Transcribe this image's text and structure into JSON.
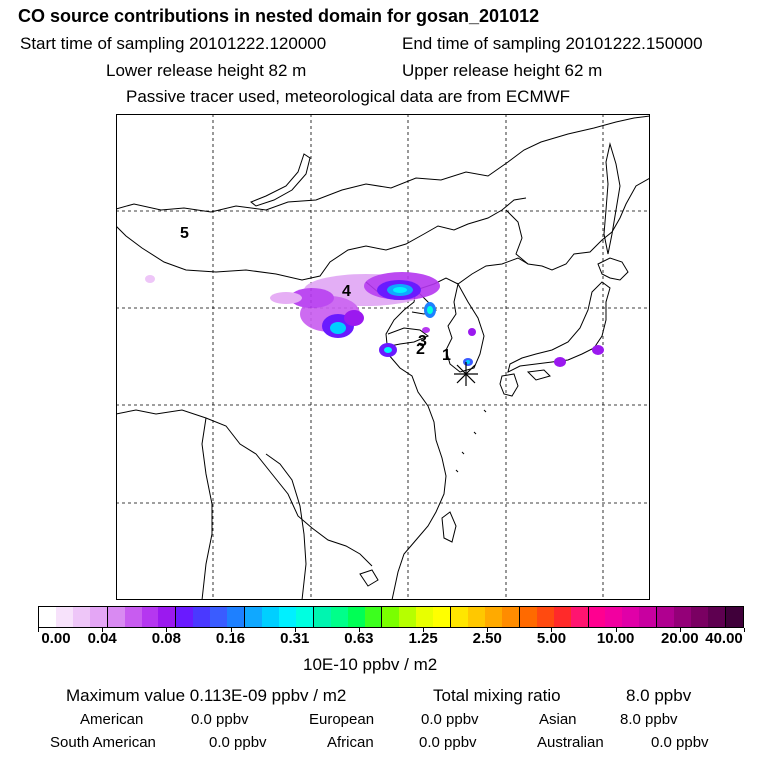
{
  "header": {
    "title": "CO  source contributions in nested domain for gosan_201012",
    "start": "Start time of sampling 20101222.120000",
    "end": "End time of sampling 20101222.150000",
    "lower": "Lower release height   82 m",
    "upper": "Upper release height   62 m",
    "passive": "Passive tracer used, meteorological data are from ECMWF"
  },
  "map": {
    "labels": [
      "5",
      "4",
      "3",
      "2",
      "1"
    ],
    "receptor_glyph": "✳"
  },
  "colorbar": {
    "ticks": [
      "0.00",
      "0.04",
      "0.08",
      "0.16",
      "0.31",
      "0.63",
      "1.25",
      "2.50",
      "5.00",
      "10.00",
      "20.00",
      "40.00"
    ],
    "units": "10E-10 ppbv / m2",
    "colors": [
      "#ffffff",
      "#f7e2fb",
      "#eec6f8",
      "#e4a6f5",
      "#d98af2",
      "#c85cf0",
      "#b537f0",
      "#9b19ef",
      "#6a1aff",
      "#4a39ff",
      "#3a5cff",
      "#1e80ff",
      "#10a8ff",
      "#00cfff",
      "#00f0ff",
      "#00ffe0",
      "#00f5b0",
      "#00ff8a",
      "#00ff55",
      "#3cff1e",
      "#7aff00",
      "#b6ff00",
      "#e8ff00",
      "#ffff00",
      "#ffe600",
      "#ffc800",
      "#ffaa00",
      "#ff8c00",
      "#ff6a00",
      "#ff4a10",
      "#ff2a2a",
      "#ff1470",
      "#ff0090",
      "#f200a0",
      "#e000a8",
      "#c800a0",
      "#b00090",
      "#940078",
      "#7a0062",
      "#5e0050",
      "#40003a"
    ]
  },
  "stats": {
    "max": "Maximum value  0.113E-09 ppbv / m2",
    "total_label": "Total mixing ratio",
    "total_value": "8.0 ppbv",
    "american_label": "American",
    "american_value": "0.0 ppbv",
    "european_label": "European",
    "european_value": "0.0 ppbv",
    "asian_label": "Asian",
    "asian_value": "8.0 ppbv",
    "south_american_label": "South American",
    "south_american_value": "0.0 ppbv",
    "african_label": "African",
    "african_value": "0.0 ppbv",
    "australian_label": "Australian",
    "australian_value": "0.0 ppbv"
  }
}
